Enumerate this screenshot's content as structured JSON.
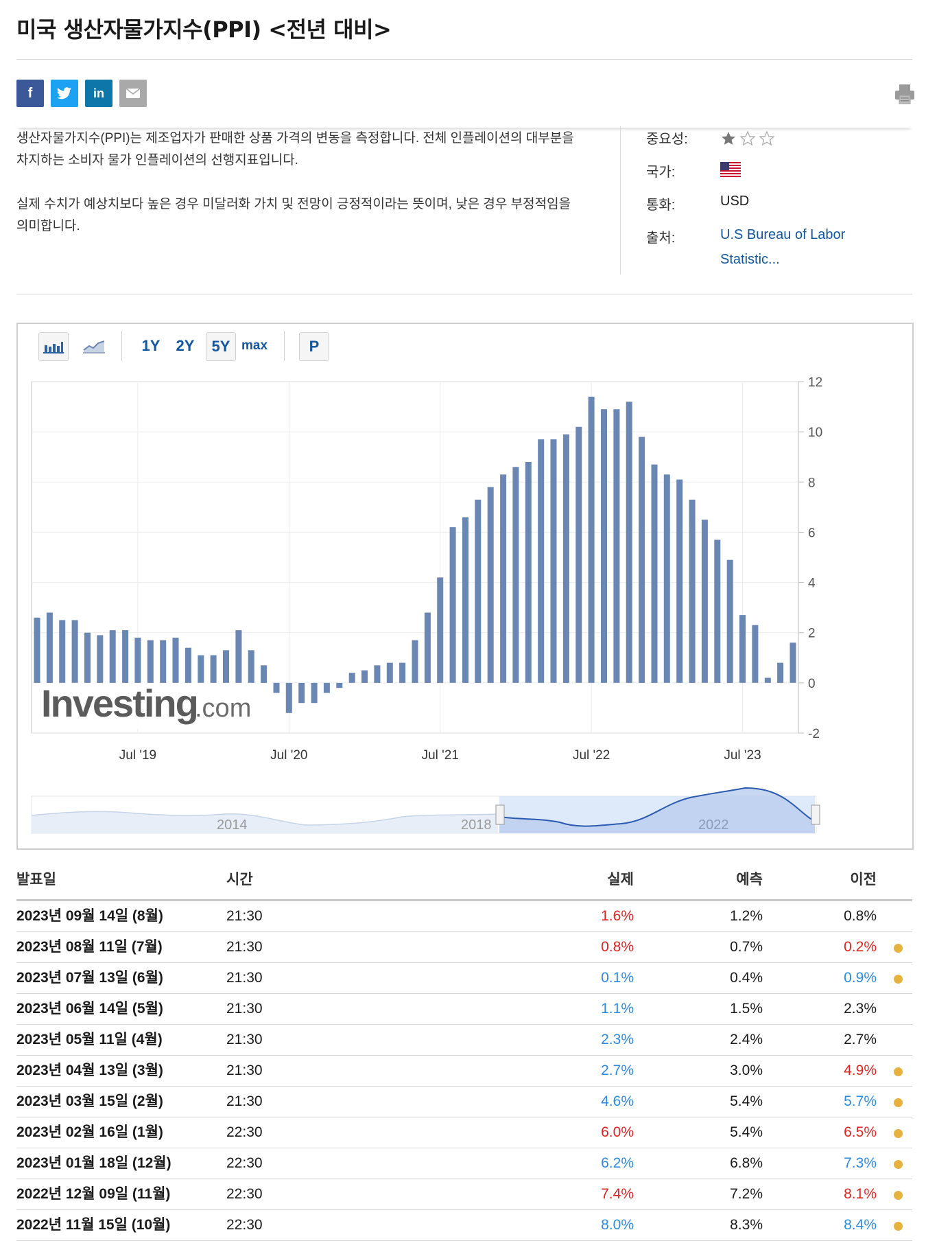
{
  "page_title": "미국 생산자물가지수(PPI) <전년 대비>",
  "share": {
    "facebook": "f",
    "twitter": "t",
    "linkedin": "in",
    "email_icon": "email-icon",
    "print_icon": "print-icon"
  },
  "description": [
    "생산자물가지수(PPI)는 제조업자가 판매한 상품 가격의 변동을 측정합니다. 전체 인플레이션의 대부분을 차지하는 소비자 물가 인플레이션의 선행지표입니다.",
    "실제 수치가 예상치보다 높은 경우 미달러화 가치 및 전망이 긍정적이라는 뜻이며, 낮은 경우 부정적임을 의미합니다."
  ],
  "meta": {
    "importance_label": "중요성:",
    "importance_stars": 1,
    "country_label": "국가:",
    "country_flag": "us-flag-icon",
    "currency_label": "통화:",
    "currency_value": "USD",
    "source_label": "출처:",
    "source_line1": "U.S Bureau of Labor",
    "source_line2": "Statistic..."
  },
  "toolbar": {
    "bar_icon": "bar-chart-icon",
    "line_icon": "line-chart-icon",
    "periods": [
      "1Y",
      "2Y",
      "5Y",
      "max"
    ],
    "active_period": "5Y",
    "p_label": "P"
  },
  "chart_data": {
    "type": "bar",
    "title": "",
    "ylim": [
      -2,
      12
    ],
    "y_ticks": [
      "12",
      "10",
      "8",
      "6",
      "4",
      "2",
      "0",
      "-2"
    ],
    "x_tick_labels": [
      "Jul '19",
      "Jul '20",
      "Jul '21",
      "Jul '22",
      "Jul '23"
    ],
    "values": [
      2.6,
      2.8,
      2.5,
      2.5,
      2.0,
      1.9,
      2.1,
      2.1,
      1.8,
      1.7,
      1.7,
      1.8,
      1.4,
      1.1,
      1.1,
      1.3,
      2.1,
      1.3,
      0.7,
      -0.4,
      -1.2,
      -0.8,
      -0.8,
      -0.4,
      -0.2,
      0.4,
      0.5,
      0.7,
      0.8,
      0.8,
      1.7,
      2.8,
      4.2,
      6.2,
      6.6,
      7.3,
      7.8,
      8.3,
      8.6,
      8.8,
      9.7,
      9.7,
      9.9,
      10.2,
      11.4,
      10.9,
      10.9,
      11.2,
      9.8,
      8.7,
      8.3,
      8.1,
      7.3,
      6.5,
      5.7,
      4.9,
      2.7,
      2.3,
      0.2,
      0.8,
      1.6
    ],
    "watermark": "Investing",
    "watermark_suffix": ".com",
    "navigator_labels": [
      "2014",
      "2018",
      "2022"
    ]
  },
  "table": {
    "headers": {
      "date": "발표일",
      "time": "시간",
      "actual": "실제",
      "forecast": "예측",
      "previous": "이전"
    },
    "rows": [
      {
        "date": "2023년 09월 14일 (8월)",
        "time": "21:30",
        "actual": "1.6%",
        "actual_color": "red",
        "forecast": "1.2%",
        "previous": "0.8%",
        "previous_color": "black",
        "revised": false
      },
      {
        "date": "2023년 08월 11일 (7월)",
        "time": "21:30",
        "actual": "0.8%",
        "actual_color": "red",
        "forecast": "0.7%",
        "previous": "0.2%",
        "previous_color": "red",
        "revised": true
      },
      {
        "date": "2023년 07월 13일 (6월)",
        "time": "21:30",
        "actual": "0.1%",
        "actual_color": "blue",
        "forecast": "0.4%",
        "previous": "0.9%",
        "previous_color": "blue",
        "revised": true
      },
      {
        "date": "2023년 06월 14일 (5월)",
        "time": "21:30",
        "actual": "1.1%",
        "actual_color": "blue",
        "forecast": "1.5%",
        "previous": "2.3%",
        "previous_color": "black",
        "revised": false
      },
      {
        "date": "2023년 05월 11일 (4월)",
        "time": "21:30",
        "actual": "2.3%",
        "actual_color": "blue",
        "forecast": "2.4%",
        "previous": "2.7%",
        "previous_color": "black",
        "revised": false
      },
      {
        "date": "2023년 04월 13일 (3월)",
        "time": "21:30",
        "actual": "2.7%",
        "actual_color": "blue",
        "forecast": "3.0%",
        "previous": "4.9%",
        "previous_color": "red",
        "revised": true
      },
      {
        "date": "2023년 03월 15일 (2월)",
        "time": "21:30",
        "actual": "4.6%",
        "actual_color": "blue",
        "forecast": "5.4%",
        "previous": "5.7%",
        "previous_color": "blue",
        "revised": true
      },
      {
        "date": "2023년 02월 16일 (1월)",
        "time": "22:30",
        "actual": "6.0%",
        "actual_color": "red",
        "forecast": "5.4%",
        "previous": "6.5%",
        "previous_color": "red",
        "revised": true
      },
      {
        "date": "2023년 01월 18일 (12월)",
        "time": "22:30",
        "actual": "6.2%",
        "actual_color": "blue",
        "forecast": "6.8%",
        "previous": "7.3%",
        "previous_color": "blue",
        "revised": true
      },
      {
        "date": "2022년 12월 09일 (11월)",
        "time": "22:30",
        "actual": "7.4%",
        "actual_color": "red",
        "forecast": "7.2%",
        "previous": "8.1%",
        "previous_color": "red",
        "revised": true
      },
      {
        "date": "2022년 11월 15일 (10월)",
        "time": "22:30",
        "actual": "8.0%",
        "actual_color": "blue",
        "forecast": "8.3%",
        "previous": "8.4%",
        "previous_color": "blue",
        "revised": true
      }
    ]
  },
  "colors": {
    "bar": "#6a86b3",
    "red": "#e0231f",
    "blue": "#2a8be0",
    "link": "#1256a0",
    "dot": "#e6b13d"
  }
}
